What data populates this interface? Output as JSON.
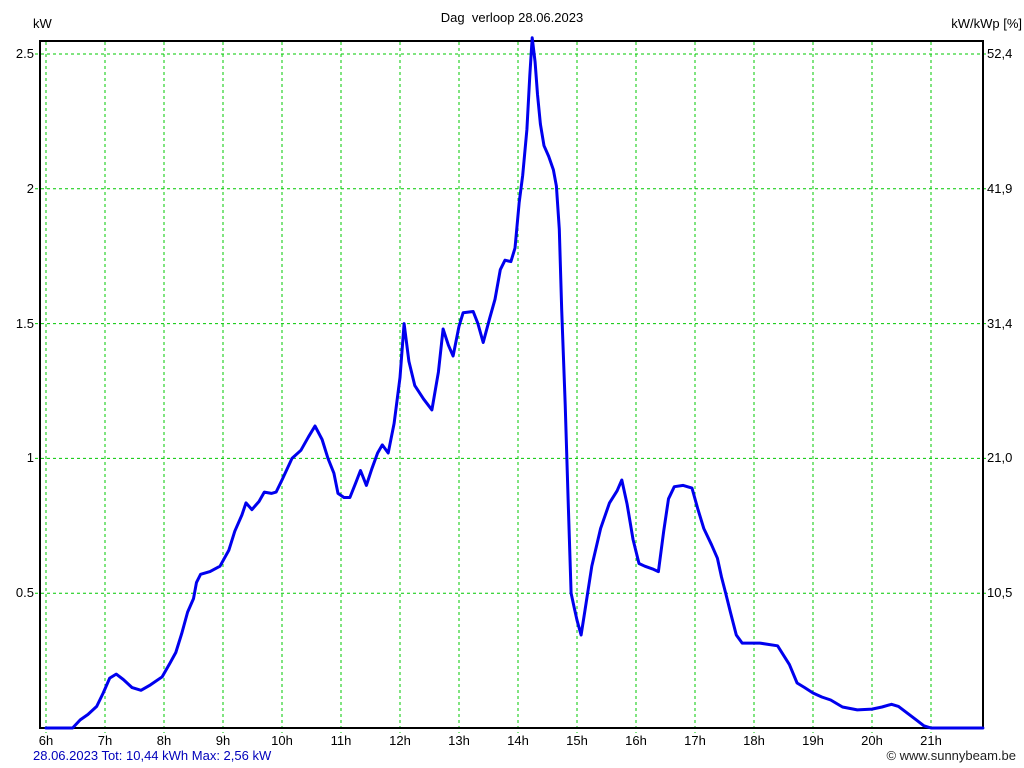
{
  "window": {
    "background": "#ffffff"
  },
  "chart_data": {
    "type": "line",
    "title": "Dag  verloop 28.06.2023",
    "x_axis": {
      "min": 6,
      "max": 21.88,
      "ticks": [
        6,
        7,
        8,
        9,
        10,
        11,
        12,
        13,
        14,
        15,
        16,
        17,
        18,
        19,
        20,
        21
      ],
      "tick_labels": [
        "6h",
        "7h",
        "8h",
        "9h",
        "10h",
        "11h",
        "12h",
        "13h",
        "14h",
        "15h",
        "16h",
        "17h",
        "18h",
        "19h",
        "20h",
        "21h"
      ]
    },
    "left_axis": {
      "unit": "kW",
      "min": 0,
      "max": 2.55,
      "ticks": [
        0.5,
        1,
        1.5,
        2,
        2.5
      ],
      "tick_labels": [
        "0.5",
        "1",
        "1.5",
        "2",
        "2.5"
      ]
    },
    "right_axis": {
      "unit": "kW/kWp [%]",
      "ticks": [
        10.5,
        21.0,
        31.4,
        41.9,
        52.4
      ],
      "tick_labels": [
        "10,5",
        "21,0",
        "31,4",
        "41,9",
        "52,4"
      ]
    },
    "grid": {
      "color": "#00c800",
      "style": "dashed"
    },
    "legend": "none",
    "derived": {
      "date": "28.06.2023",
      "total_kwh": 10.44,
      "max_kw": 2.56
    },
    "series": [
      {
        "name": "pv-power-kw",
        "color": "#0000ee",
        "points": [
          [
            6,
            0
          ],
          [
            6.45,
            0
          ],
          [
            6.58,
            0.03
          ],
          [
            6.71,
            0.05
          ],
          [
            6.86,
            0.08
          ],
          [
            6.97,
            0.13
          ],
          [
            7.08,
            0.185
          ],
          [
            7.19,
            0.2
          ],
          [
            7.31,
            0.18
          ],
          [
            7.46,
            0.15
          ],
          [
            7.61,
            0.14
          ],
          [
            7.77,
            0.16
          ],
          [
            7.97,
            0.19
          ],
          [
            8.1,
            0.24
          ],
          [
            8.2,
            0.28
          ],
          [
            8.3,
            0.35
          ],
          [
            8.4,
            0.43
          ],
          [
            8.5,
            0.48
          ],
          [
            8.55,
            0.54
          ],
          [
            8.62,
            0.57
          ],
          [
            8.78,
            0.58
          ],
          [
            8.95,
            0.6
          ],
          [
            9.1,
            0.66
          ],
          [
            9.2,
            0.73
          ],
          [
            9.32,
            0.79
          ],
          [
            9.39,
            0.835
          ],
          [
            9.49,
            0.81
          ],
          [
            9.61,
            0.84
          ],
          [
            9.7,
            0.875
          ],
          [
            9.82,
            0.87
          ],
          [
            9.9,
            0.875
          ],
          [
            10,
            0.92
          ],
          [
            10.17,
            1.0
          ],
          [
            10.32,
            1.03
          ],
          [
            10.45,
            1.08
          ],
          [
            10.56,
            1.12
          ],
          [
            10.68,
            1.07
          ],
          [
            10.78,
            1.0
          ],
          [
            10.88,
            0.945
          ],
          [
            10.95,
            0.87
          ],
          [
            11.05,
            0.855
          ],
          [
            11.15,
            0.855
          ],
          [
            11.25,
            0.91
          ],
          [
            11.33,
            0.955
          ],
          [
            11.43,
            0.9
          ],
          [
            11.52,
            0.96
          ],
          [
            11.62,
            1.02
          ],
          [
            11.7,
            1.05
          ],
          [
            11.8,
            1.02
          ],
          [
            11.9,
            1.13
          ],
          [
            12,
            1.3
          ],
          [
            12.07,
            1.5
          ],
          [
            12.15,
            1.36
          ],
          [
            12.25,
            1.27
          ],
          [
            12.4,
            1.22
          ],
          [
            12.54,
            1.18
          ],
          [
            12.65,
            1.32
          ],
          [
            12.73,
            1.48
          ],
          [
            12.82,
            1.42
          ],
          [
            12.9,
            1.38
          ],
          [
            13,
            1.49
          ],
          [
            13.07,
            1.54
          ],
          [
            13.24,
            1.545
          ],
          [
            13.32,
            1.5
          ],
          [
            13.41,
            1.43
          ],
          [
            13.52,
            1.52
          ],
          [
            13.61,
            1.59
          ],
          [
            13.7,
            1.7
          ],
          [
            13.78,
            1.735
          ],
          [
            13.88,
            1.73
          ],
          [
            13.95,
            1.78
          ],
          [
            14.02,
            1.95
          ],
          [
            14.08,
            2.05
          ],
          [
            14.15,
            2.22
          ],
          [
            14.2,
            2.42
          ],
          [
            14.24,
            2.56
          ],
          [
            14.29,
            2.47
          ],
          [
            14.33,
            2.35
          ],
          [
            14.38,
            2.24
          ],
          [
            14.44,
            2.16
          ],
          [
            14.52,
            2.12
          ],
          [
            14.6,
            2.07
          ],
          [
            14.65,
            2.01
          ],
          [
            14.7,
            1.85
          ],
          [
            14.74,
            1.55
          ],
          [
            14.8,
            1.2
          ],
          [
            14.85,
            0.85
          ],
          [
            14.9,
            0.5
          ],
          [
            14.95,
            0.45
          ],
          [
            15,
            0.4
          ],
          [
            15.07,
            0.345
          ],
          [
            15.13,
            0.43
          ],
          [
            15.25,
            0.6
          ],
          [
            15.4,
            0.74
          ],
          [
            15.55,
            0.835
          ],
          [
            15.68,
            0.88
          ],
          [
            15.76,
            0.92
          ],
          [
            15.85,
            0.83
          ],
          [
            15.95,
            0.7
          ],
          [
            16.05,
            0.61
          ],
          [
            16.15,
            0.6
          ],
          [
            16.28,
            0.59
          ],
          [
            16.38,
            0.58
          ],
          [
            16.47,
            0.73
          ],
          [
            16.55,
            0.85
          ],
          [
            16.65,
            0.895
          ],
          [
            16.8,
            0.9
          ],
          [
            16.95,
            0.89
          ],
          [
            17.05,
            0.81
          ],
          [
            17.15,
            0.74
          ],
          [
            17.28,
            0.68
          ],
          [
            17.38,
            0.63
          ],
          [
            17.45,
            0.56
          ],
          [
            17.52,
            0.5
          ],
          [
            17.6,
            0.43
          ],
          [
            17.7,
            0.345
          ],
          [
            17.8,
            0.315
          ],
          [
            18.1,
            0.315
          ],
          [
            18.4,
            0.305
          ],
          [
            18.5,
            0.27
          ],
          [
            18.6,
            0.235
          ],
          [
            18.73,
            0.167
          ],
          [
            18.86,
            0.15
          ],
          [
            19,
            0.13
          ],
          [
            19.15,
            0.115
          ],
          [
            19.3,
            0.104
          ],
          [
            19.5,
            0.078
          ],
          [
            19.75,
            0.067
          ],
          [
            20,
            0.07
          ],
          [
            20.17,
            0.078
          ],
          [
            20.33,
            0.088
          ],
          [
            20.45,
            0.08
          ],
          [
            20.6,
            0.055
          ],
          [
            20.75,
            0.03
          ],
          [
            20.88,
            0.008
          ],
          [
            21,
            0
          ],
          [
            21.3,
            0
          ],
          [
            21.88,
            0
          ]
        ]
      }
    ]
  },
  "footer": {
    "left": "28.06.2023 Tot: 10,44 kWh Max: 2,56 kW",
    "right": "© www.sunnybeam.be"
  }
}
